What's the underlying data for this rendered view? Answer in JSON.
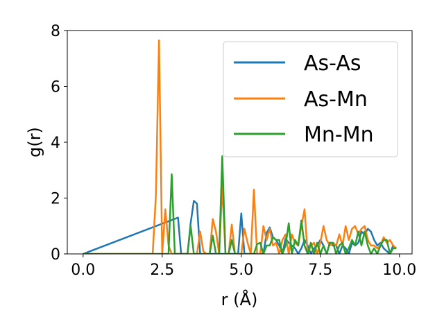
{
  "chart_data": {
    "type": "line",
    "title": "",
    "xlabel": "r (Å)",
    "ylabel": "g(r)",
    "xlim": [
      -0.5,
      10.4
    ],
    "ylim": [
      0,
      8
    ],
    "xticks": [
      "0.0",
      "2.5",
      "5.0",
      "7.5",
      "10.0"
    ],
    "yticks": [
      "0",
      "2",
      "4",
      "6",
      "8"
    ],
    "grid": false,
    "legend_position": "top-right",
    "series": [
      {
        "name": "As-As",
        "color": "#1f77b4",
        "x": [
          0.0,
          3.0,
          3.1,
          3.2,
          3.3,
          3.4,
          3.5,
          3.6,
          3.7,
          3.8,
          3.9,
          4.0,
          4.1,
          4.2,
          4.3,
          4.4,
          4.5,
          4.6,
          4.7,
          4.8,
          4.9,
          5.0,
          5.1,
          5.2,
          5.3,
          5.4,
          5.5,
          5.6,
          5.7,
          5.8,
          5.9,
          6.0,
          6.1,
          6.2,
          6.3,
          6.4,
          6.5,
          6.6,
          6.7,
          6.8,
          6.9,
          7.0,
          7.1,
          7.2,
          7.3,
          7.4,
          7.5,
          7.6,
          7.7,
          7.8,
          7.9,
          8.0,
          8.1,
          8.2,
          8.3,
          8.4,
          8.5,
          8.6,
          8.7,
          8.8,
          8.9,
          9.0,
          9.1,
          9.2,
          9.3,
          9.4,
          9.5,
          9.6,
          9.7,
          9.8,
          9.9
        ],
        "y": [
          0,
          1.3,
          0,
          0,
          0,
          1.1,
          1.9,
          1.8,
          0,
          0,
          0,
          0,
          0,
          0,
          0,
          0,
          0,
          0,
          0,
          0,
          0,
          1.45,
          0,
          0,
          0,
          0,
          0,
          0,
          0,
          0.75,
          0.95,
          0.6,
          0.5,
          0.3,
          0,
          0.55,
          0.4,
          0.3,
          0.2,
          0,
          0.2,
          0.5,
          0.3,
          0,
          0.2,
          0.3,
          0.5,
          0.3,
          0,
          0.4,
          0.3,
          0.3,
          0,
          0.3,
          0.2,
          0,
          0.4,
          0.3,
          0.4,
          0.8,
          0.7,
          0.9,
          0.8,
          0.5,
          0.3,
          0.4,
          0.2,
          0.1,
          0,
          0.3,
          0.2
        ]
      },
      {
        "name": "As-Mn",
        "color": "#ff7f0e",
        "x": [
          0.0,
          2.2,
          2.3,
          2.4,
          2.5,
          2.6,
          2.7,
          2.8,
          2.9,
          3.0,
          3.1,
          3.2,
          3.3,
          3.4,
          3.5,
          3.6,
          3.7,
          3.8,
          3.9,
          4.0,
          4.1,
          4.2,
          4.3,
          4.4,
          4.5,
          4.6,
          4.7,
          4.8,
          4.9,
          5.0,
          5.1,
          5.2,
          5.3,
          5.4,
          5.5,
          5.6,
          5.7,
          5.8,
          5.9,
          6.0,
          6.1,
          6.2,
          6.3,
          6.4,
          6.5,
          6.6,
          6.7,
          6.8,
          6.9,
          7.0,
          7.1,
          7.2,
          7.3,
          7.4,
          7.5,
          7.6,
          7.7,
          7.8,
          7.9,
          8.0,
          8.1,
          8.2,
          8.3,
          8.4,
          8.5,
          8.6,
          8.7,
          8.8,
          8.9,
          9.0,
          9.1,
          9.2,
          9.3,
          9.4,
          9.5,
          9.6,
          9.7,
          9.8,
          9.9
        ],
        "y": [
          0,
          0,
          2.1,
          7.65,
          0,
          1.6,
          0.3,
          0,
          0,
          0,
          0,
          0,
          0,
          0,
          0,
          0,
          0.8,
          0.1,
          0,
          0,
          1.25,
          0.8,
          0,
          2.45,
          0,
          0,
          1.05,
          0,
          0,
          0,
          0.9,
          0.4,
          0,
          2.3,
          0,
          0,
          1.0,
          0.5,
          0.9,
          0.3,
          0.4,
          0,
          0.5,
          0.7,
          0,
          0.7,
          0.4,
          0.3,
          1.0,
          1.6,
          0,
          0.3,
          0.4,
          0,
          0.4,
          1.0,
          0.5,
          0.3,
          0.4,
          0.3,
          0.7,
          0.3,
          1.0,
          0.5,
          0.9,
          1.0,
          0.7,
          0.9,
          1.0,
          0.5,
          0.3,
          0.3,
          0.2,
          0.3,
          0.6,
          0.4,
          0.5,
          0.3,
          0.2
        ]
      },
      {
        "name": "Mn-Mn",
        "color": "#2ca02c",
        "x": [
          0.0,
          2.7,
          2.8,
          2.9,
          3.0,
          3.1,
          3.2,
          3.3,
          3.4,
          3.5,
          3.6,
          3.7,
          3.8,
          3.9,
          4.0,
          4.1,
          4.2,
          4.3,
          4.4,
          4.5,
          4.6,
          4.7,
          4.8,
          4.9,
          5.0,
          5.1,
          5.2,
          5.3,
          5.4,
          5.5,
          5.6,
          5.7,
          5.8,
          5.9,
          6.0,
          6.1,
          6.2,
          6.3,
          6.4,
          6.5,
          6.6,
          6.7,
          6.8,
          6.9,
          7.0,
          7.1,
          7.2,
          7.3,
          7.4,
          7.5,
          7.6,
          7.7,
          7.8,
          7.9,
          8.0,
          8.1,
          8.2,
          8.3,
          8.4,
          8.5,
          8.6,
          8.7,
          8.8,
          8.9,
          9.0,
          9.1,
          9.2,
          9.3,
          9.4,
          9.5,
          9.6,
          9.7,
          9.8,
          9.9
        ],
        "y": [
          0,
          0,
          2.85,
          0,
          0,
          0,
          0,
          0,
          1.0,
          0,
          0,
          0,
          0,
          0,
          0,
          0.65,
          0,
          0,
          3.5,
          0,
          0,
          0.5,
          0,
          0,
          0,
          0,
          0,
          0,
          0,
          0.35,
          0.4,
          0,
          0.3,
          0.3,
          0.6,
          0.5,
          0.5,
          0,
          0.3,
          1.1,
          0,
          0.5,
          0.3,
          1.2,
          0.3,
          0,
          0.4,
          0,
          0.4,
          0,
          0.3,
          0,
          0.4,
          0.4,
          0,
          0.3,
          0.4,
          0,
          0.2,
          0.5,
          0.3,
          0.8,
          0.3,
          0.8,
          0.3,
          0,
          0.2,
          0,
          0.3,
          0.5,
          0.5,
          0,
          0.2,
          0.2
        ]
      }
    ]
  }
}
